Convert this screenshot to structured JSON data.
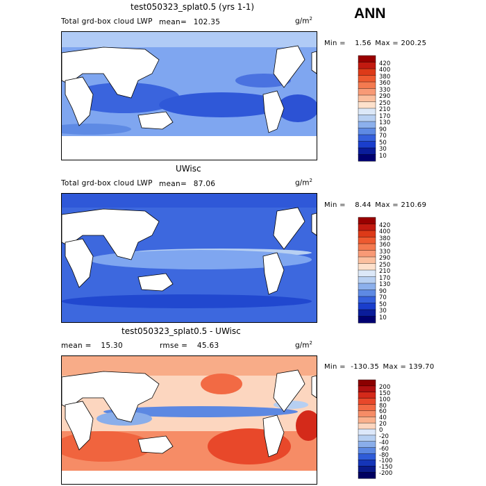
{
  "header": {
    "season": "ANN"
  },
  "panels": [
    {
      "id": "model",
      "title": "test050323_splat0.5 (yrs 1-1)",
      "left_label": "Total grd-box cloud LWP",
      "stat_label": "mean=",
      "stat_value": "102.35",
      "units_base": "g/m",
      "units_exp": "2",
      "min_label": "Min =",
      "min_value": "1.56",
      "max_label": "Max =",
      "max_value": "200.25",
      "legend_levels": [
        "420",
        "400",
        "380",
        "360",
        "330",
        "290",
        "250",
        "210",
        "170",
        "130",
        "90",
        "70",
        "50",
        "30",
        "10"
      ],
      "legend_colors": [
        "#990000",
        "#c21a10",
        "#dd3a18",
        "#ee5a30",
        "#f47a50",
        "#f89a76",
        "#fbbf9e",
        "#fde1cc",
        "#dce8f8",
        "#b8d0f2",
        "#8cb0ec",
        "#5e8ae4",
        "#3560dc",
        "#1a3ecc",
        "#0a1c9a",
        "#000070"
      ]
    },
    {
      "id": "obs",
      "title": "UWisc",
      "left_label": "Total grd-box cloud LWP",
      "stat_label": "mean=",
      "stat_value": "87.06",
      "units_base": "g/m",
      "units_exp": "2",
      "min_label": "Min =",
      "min_value": "8.44",
      "max_label": "Max =",
      "max_value": "210.69",
      "legend_levels": [
        "420",
        "400",
        "380",
        "360",
        "330",
        "290",
        "250",
        "210",
        "170",
        "130",
        "90",
        "70",
        "50",
        "30",
        "10"
      ],
      "legend_colors": [
        "#990000",
        "#c21a10",
        "#dd3a18",
        "#ee5a30",
        "#f47a50",
        "#f89a76",
        "#fbbf9e",
        "#fde1cc",
        "#dce8f8",
        "#b8d0f2",
        "#8cb0ec",
        "#5e8ae4",
        "#3560dc",
        "#1a3ecc",
        "#0a1c9a",
        "#000070"
      ]
    },
    {
      "id": "diff",
      "title": "test050323_splat0.5 - UWisc",
      "stat_label": "mean =",
      "stat_value": "15.30",
      "rmse_label": "rmse =",
      "rmse_value": "45.63",
      "units_base": "g/m",
      "units_exp": "2",
      "min_label": "Min =",
      "min_value": "-130.35",
      "max_label": "Max =",
      "max_value": "139.70",
      "legend_levels": [
        "200",
        "150",
        "100",
        "80",
        "60",
        "40",
        "20",
        "0",
        "-20",
        "-40",
        "-60",
        "-80",
        "-100",
        "-150",
        "-200"
      ],
      "legend_colors": [
        "#8b0000",
        "#b01010",
        "#d42a1a",
        "#e8482a",
        "#f26a44",
        "#f68c66",
        "#fab08c",
        "#fcd6bf",
        "#dde8fa",
        "#b6cff2",
        "#8aaeea",
        "#5c88e2",
        "#2f5cd8",
        "#1535b8",
        "#0a1a8a",
        "#000060"
      ]
    }
  ]
}
